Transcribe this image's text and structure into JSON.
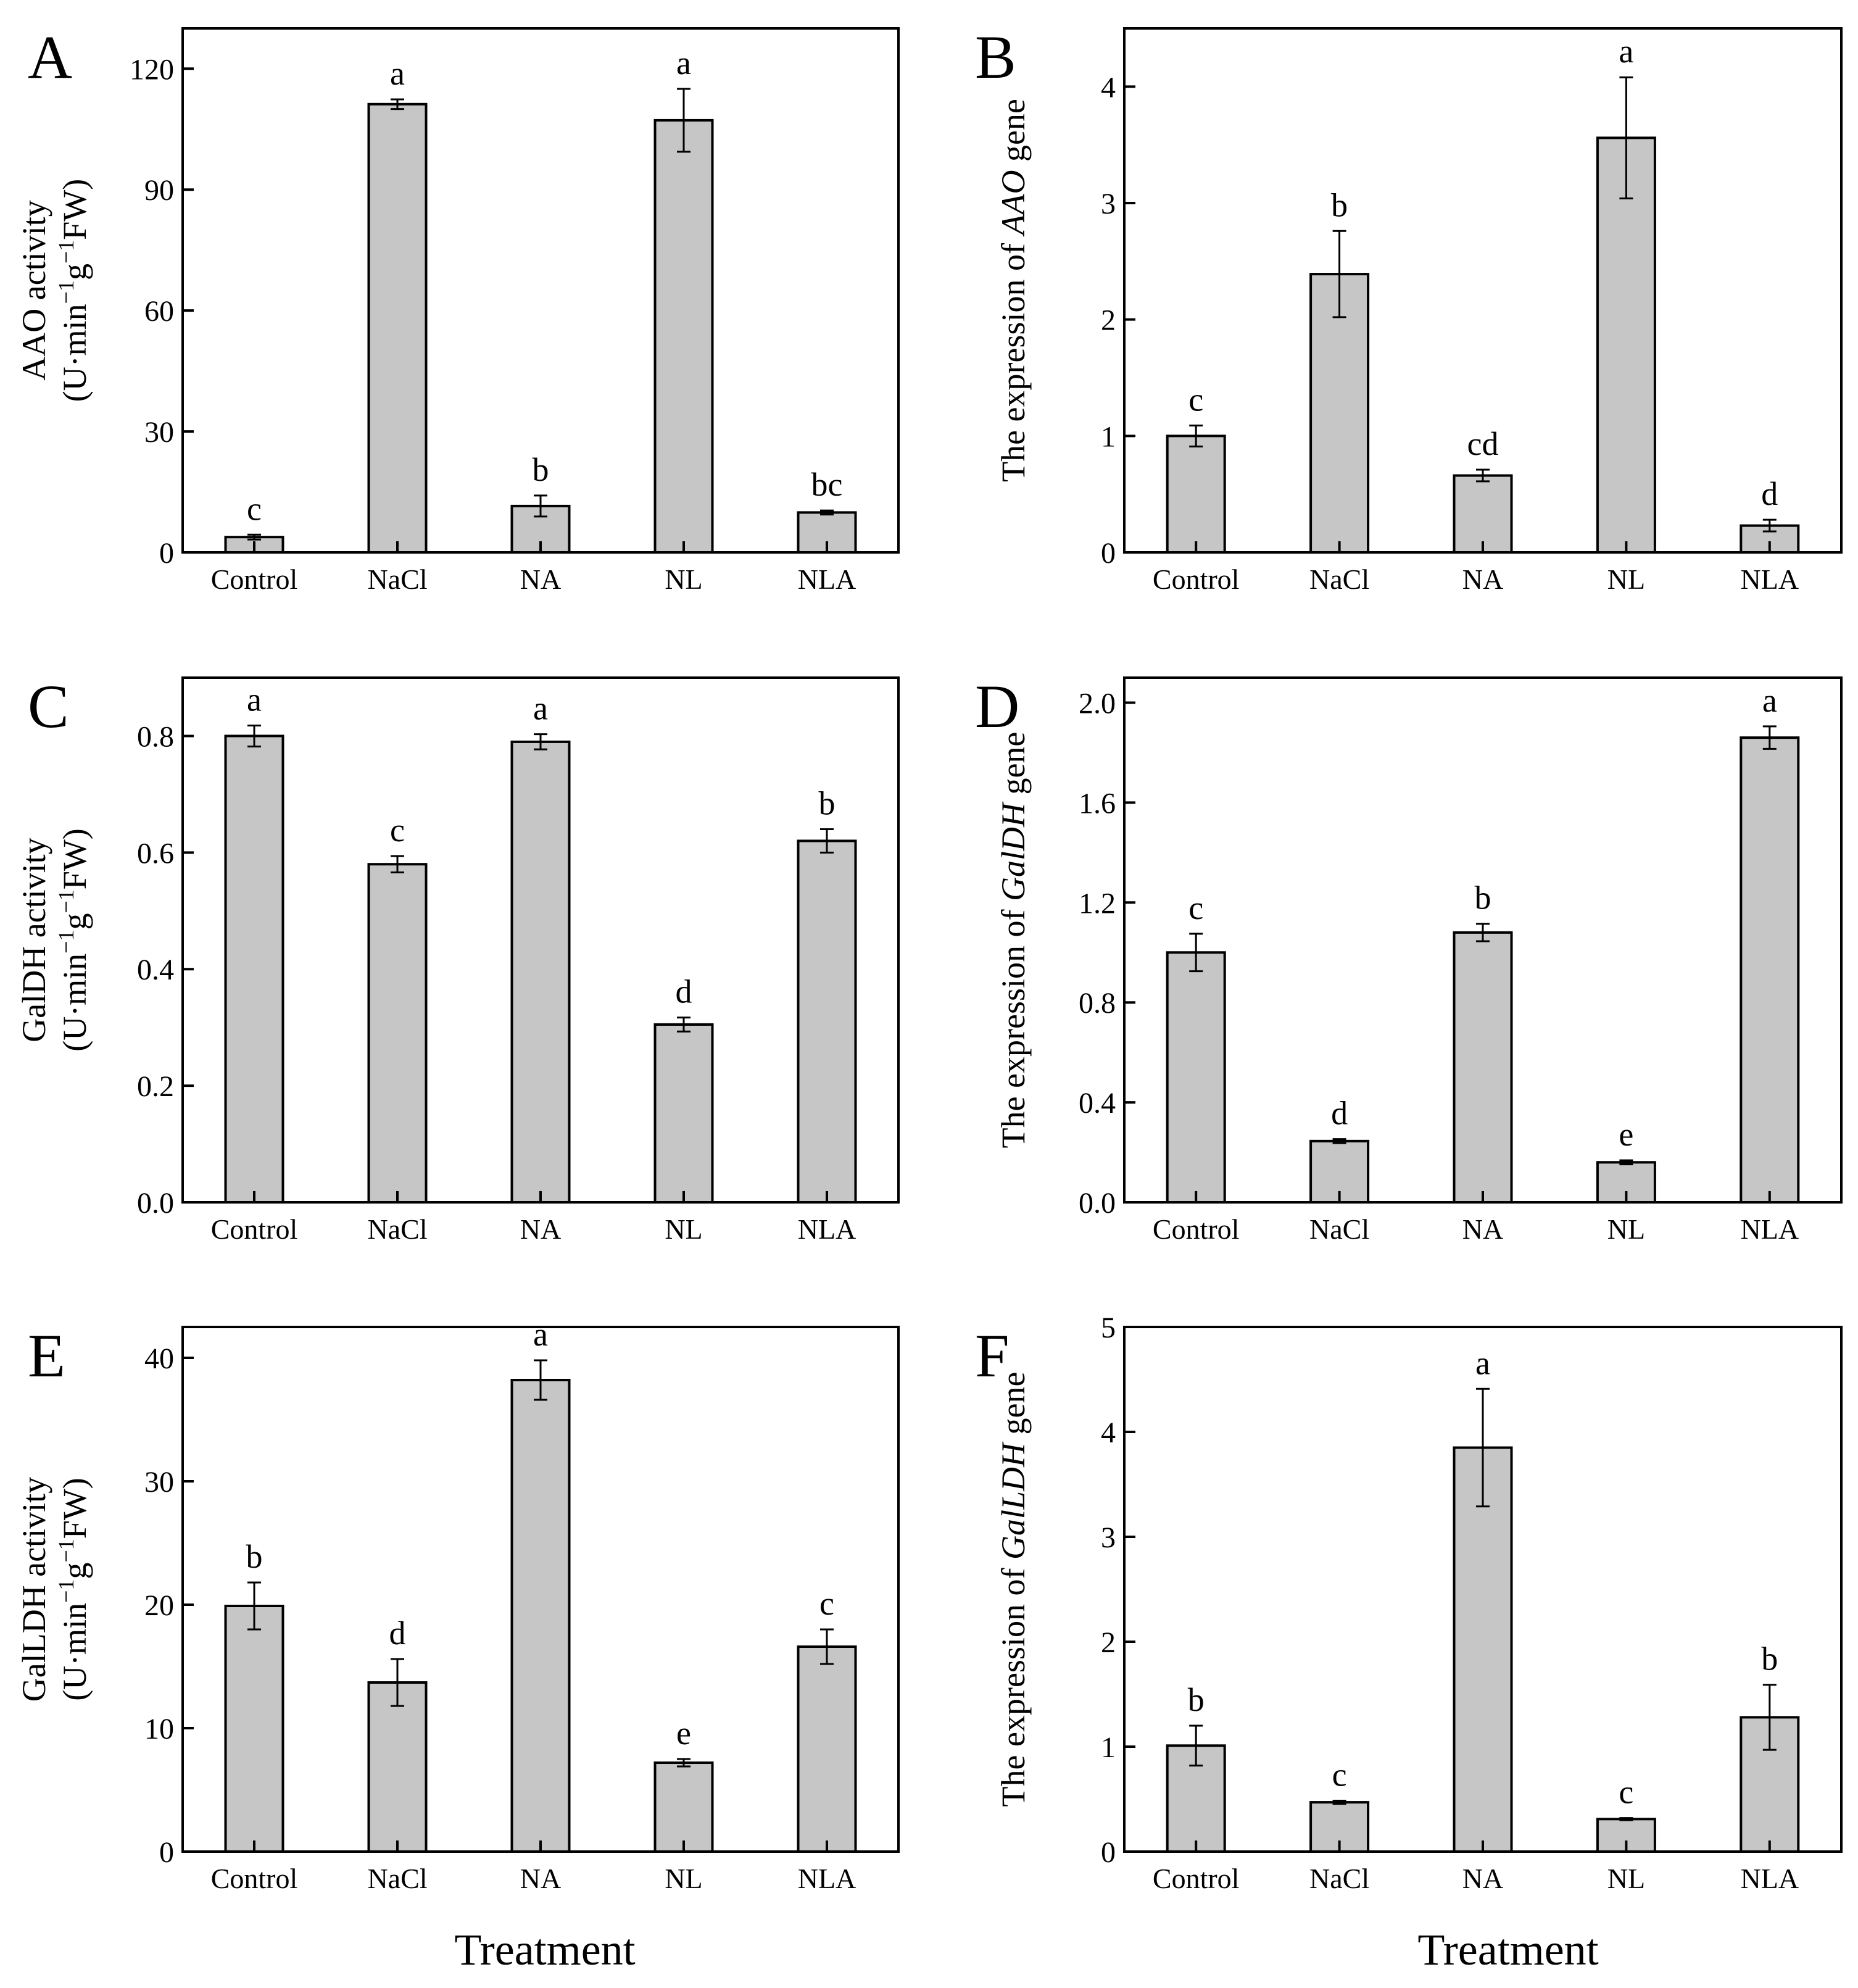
{
  "figure": {
    "x_titles": [
      "Treatment",
      "Treatment"
    ]
  },
  "chart_data": [
    {
      "type": "bar",
      "panel": "A",
      "ylabel_lines": [
        [
          {
            "t": "AAO activity"
          }
        ],
        [
          {
            "t": "(U·min"
          },
          {
            "t": "−1",
            "sup": true
          },
          {
            "t": "g"
          },
          {
            "t": "−1",
            "sup": true
          },
          {
            "t": "FW)"
          }
        ]
      ],
      "categories": [
        "Control",
        "NaCl",
        "NA",
        "NL",
        "NLA"
      ],
      "values": [
        3.8,
        111.2,
        11.5,
        107.2,
        9.9
      ],
      "errors": [
        0.6,
        1.2,
        2.6,
        7.8,
        0.5
      ],
      "letters": [
        "c",
        "a",
        "b",
        "a",
        "bc"
      ],
      "ylim": [
        0,
        130
      ],
      "yticks": [
        0,
        30,
        60,
        90,
        120
      ],
      "tick_labels": [
        "0",
        "30",
        "60",
        "90",
        "120"
      ],
      "xlabel": "Treatment"
    },
    {
      "type": "bar",
      "panel": "B",
      "ylabel_lines": [
        [
          {
            "t": "The expression of "
          },
          {
            "t": "AAO",
            "it": true
          },
          {
            "t": " gene"
          }
        ]
      ],
      "categories": [
        "Control",
        "NaCl",
        "NA",
        "NL",
        "NLA"
      ],
      "values": [
        1.0,
        2.39,
        0.66,
        3.56,
        0.23
      ],
      "errors": [
        0.09,
        0.37,
        0.05,
        0.52,
        0.05
      ],
      "letters": [
        "c",
        "b",
        "cd",
        "a",
        "d"
      ],
      "ylim": [
        0,
        4.5
      ],
      "yticks": [
        0,
        1,
        2,
        3,
        4
      ],
      "tick_labels": [
        "0",
        "1",
        "2",
        "3",
        "4"
      ],
      "xlabel": "Treatment"
    },
    {
      "type": "bar",
      "panel": "C",
      "ylabel_lines": [
        [
          {
            "t": "GalDH activity"
          }
        ],
        [
          {
            "t": "(U·min"
          },
          {
            "t": "−1",
            "sup": true
          },
          {
            "t": "g"
          },
          {
            "t": "−1",
            "sup": true
          },
          {
            "t": "FW)"
          }
        ]
      ],
      "categories": [
        "Control",
        "NaCl",
        "NA",
        "NL",
        "NLA"
      ],
      "values": [
        0.8,
        0.58,
        0.79,
        0.305,
        0.62
      ],
      "errors": [
        0.018,
        0.014,
        0.013,
        0.012,
        0.02
      ],
      "letters": [
        "a",
        "c",
        "a",
        "d",
        "b"
      ],
      "ylim": [
        0,
        0.9
      ],
      "yticks": [
        0,
        0.2,
        0.4,
        0.6,
        0.8
      ],
      "tick_labels": [
        "0.0",
        "0.2",
        "0.4",
        "0.6",
        "0.8"
      ],
      "xlabel": "Treatment"
    },
    {
      "type": "bar",
      "panel": "D",
      "ylabel_lines": [
        [
          {
            "t": "The expression of "
          },
          {
            "t": "GalDH",
            "it": true
          },
          {
            "t": " gene"
          }
        ]
      ],
      "categories": [
        "Control",
        "NaCl",
        "NA",
        "NL",
        "NLA"
      ],
      "values": [
        1.0,
        0.245,
        1.08,
        0.16,
        1.86
      ],
      "errors": [
        0.075,
        0.008,
        0.035,
        0.008,
        0.045
      ],
      "letters": [
        "c",
        "d",
        "b",
        "e",
        "a"
      ],
      "ylim": [
        0,
        2.1
      ],
      "yticks": [
        0,
        0.4,
        0.8,
        1.2,
        1.6,
        2.0
      ],
      "tick_labels": [
        "0.0",
        "0.4",
        "0.8",
        "1.2",
        "1.6",
        "2.0"
      ],
      "xlabel": "Treatment"
    },
    {
      "type": "bar",
      "panel": "E",
      "ylabel_lines": [
        [
          {
            "t": "GalLDH activity"
          }
        ],
        [
          {
            "t": "(U·min"
          },
          {
            "t": "−1",
            "sup": true
          },
          {
            "t": "g"
          },
          {
            "t": "−1",
            "sup": true
          },
          {
            "t": "FW)"
          }
        ]
      ],
      "categories": [
        "Control",
        "NaCl",
        "NA",
        "NL",
        "NLA"
      ],
      "values": [
        19.9,
        13.7,
        38.2,
        7.2,
        16.6
      ],
      "errors": [
        1.9,
        1.9,
        1.6,
        0.3,
        1.4
      ],
      "letters": [
        "b",
        "d",
        "a",
        "e",
        "c"
      ],
      "ylim": [
        0,
        42.5
      ],
      "yticks": [
        0,
        10,
        20,
        30,
        40
      ],
      "tick_labels": [
        "0",
        "10",
        "20",
        "30",
        "40"
      ],
      "xlabel": "Treatment"
    },
    {
      "type": "bar",
      "panel": "F",
      "ylabel_lines": [
        [
          {
            "t": "The expression of "
          },
          {
            "t": "GalLDH",
            "it": true
          },
          {
            "t": " gene"
          }
        ]
      ],
      "categories": [
        "Control",
        "NaCl",
        "NA",
        "NL",
        "NLA"
      ],
      "values": [
        1.01,
        0.47,
        3.85,
        0.31,
        1.28
      ],
      "errors": [
        0.19,
        0.015,
        0.56,
        0.01,
        0.31
      ],
      "letters": [
        "b",
        "c",
        "a",
        "c",
        "b"
      ],
      "ylim": [
        0,
        5
      ],
      "yticks": [
        0,
        1,
        2,
        3,
        4,
        5
      ],
      "tick_labels": [
        "0",
        "1",
        "2",
        "3",
        "4",
        "5"
      ],
      "xlabel": "Treatment"
    }
  ]
}
